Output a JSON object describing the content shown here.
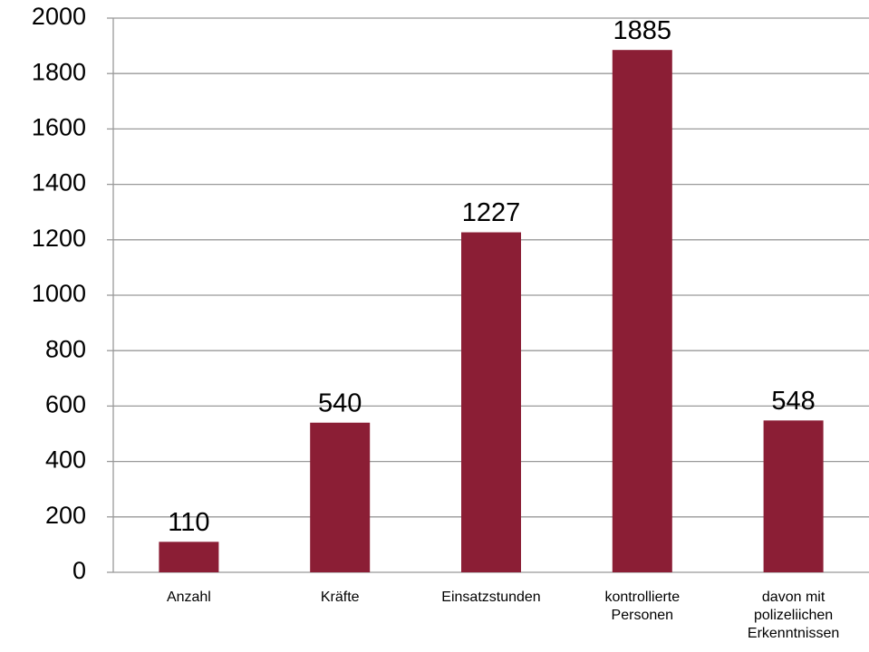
{
  "chart_data": {
    "type": "bar",
    "categories": [
      "Anzahl",
      "Kräfte",
      "Einsatzstunden",
      "kontrollierte\nPersonen",
      "davon mit\npolizeliichen\nErkenntnissen"
    ],
    "values": [
      110,
      540,
      1227,
      1885,
      548
    ],
    "color": "#8b1e35",
    "ylim": [
      0,
      2000
    ],
    "yticks": [
      0,
      200,
      400,
      600,
      800,
      1000,
      1200,
      1400,
      1600,
      1800,
      2000
    ],
    "grid": true
  }
}
